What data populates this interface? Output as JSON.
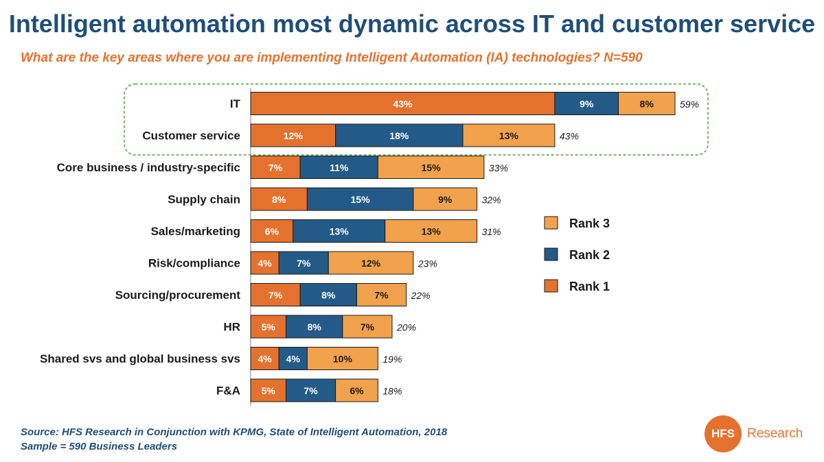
{
  "title": "Intelligent automation most dynamic across IT and customer service",
  "subtitle": "What are the key areas where you are implementing Intelligent Automation (IA) technologies? N=590",
  "source": {
    "line1": "Source: HFS Research in Conjunction with KPMG, State of Intelligent Automation, 2018",
    "line2": "Sample = 590 Business Leaders"
  },
  "logo": {
    "mark": "HFS",
    "text": "Research"
  },
  "colors": {
    "rank1": "#E4722E",
    "rank2": "#245A87",
    "rank3": "#F2A14C",
    "highlight": "#4AA03C"
  },
  "chart_data": {
    "type": "bar",
    "orientation": "horizontal",
    "stacked": true,
    "categories": [
      "IT",
      "Customer service",
      "Core business / industry-specific",
      "Supply chain",
      "Sales/marketing",
      "Risk/compliance",
      "Sourcing/procurement",
      "HR",
      "Shared svs and global business svs",
      "F&A"
    ],
    "series": [
      {
        "name": "Rank 1",
        "values": [
          43,
          12,
          7,
          8,
          6,
          4,
          7,
          5,
          4,
          5
        ]
      },
      {
        "name": "Rank 2",
        "values": [
          9,
          18,
          11,
          15,
          13,
          7,
          8,
          8,
          4,
          7
        ]
      },
      {
        "name": "Rank 3",
        "values": [
          8,
          13,
          15,
          9,
          13,
          12,
          7,
          7,
          10,
          6
        ]
      }
    ],
    "totals": [
      59,
      43,
      33,
      32,
      31,
      23,
      22,
      20,
      19,
      18
    ],
    "legend": [
      "Rank 3",
      "Rank 2",
      "Rank 1"
    ],
    "legend_position": "right",
    "value_suffix": "%",
    "highlighted_categories": [
      "IT",
      "Customer service"
    ]
  }
}
